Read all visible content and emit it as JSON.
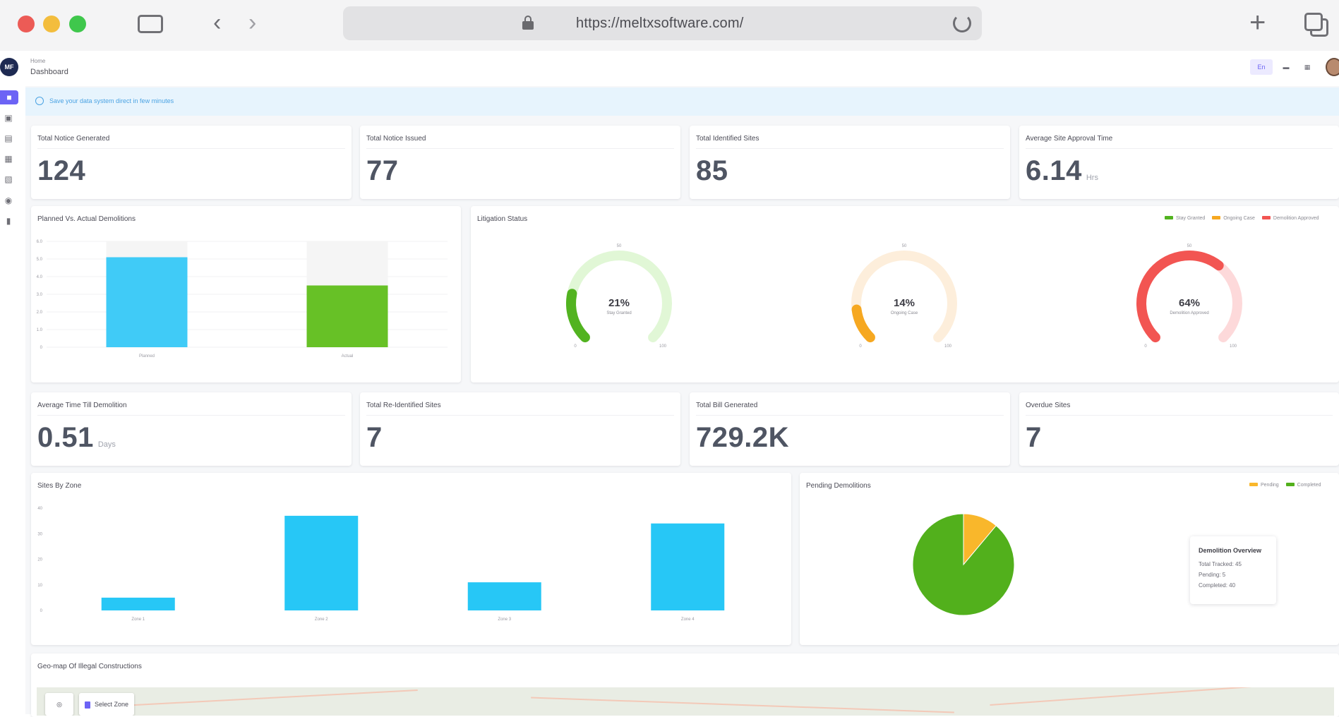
{
  "browser": {
    "url": "https://meltxsoftware.com/"
  },
  "topbar": {
    "breadcrumb_home": "Home",
    "page_title": "Dashboard",
    "lang_chip": "En"
  },
  "alert": {
    "text": "Save your data system direct in few minutes"
  },
  "kpis_row1": [
    {
      "title": "Total Notice Generated",
      "value": "124",
      "unit": ""
    },
    {
      "title": "Total Notice Issued",
      "value": "77",
      "unit": ""
    },
    {
      "title": "Total Identified Sites",
      "value": "85",
      "unit": ""
    },
    {
      "title": "Average Site Approval Time",
      "value": "6.14",
      "unit": "Hrs"
    }
  ],
  "kpis_row2": [
    {
      "title": "Average Time Till Demolition",
      "value": "0.51",
      "unit": "Days"
    },
    {
      "title": "Total Re-Identified Sites",
      "value": "7",
      "unit": ""
    },
    {
      "title": "Total Bill Generated",
      "value": "729.2K",
      "unit": ""
    },
    {
      "title": "Overdue Sites",
      "value": "7",
      "unit": ""
    }
  ],
  "planned_chart": {
    "title": "Planned Vs. Actual Demolitions",
    "y_ticks": [
      "6.0",
      "5.0",
      "4.0",
      "3.0",
      "2.0",
      "1.0",
      "0"
    ]
  },
  "litigation": {
    "title": "Litigation Status",
    "gauge_min": "0",
    "gauge_mid": "50",
    "gauge_max": "100",
    "colors": {
      "green": "#52b320",
      "orange": "#f6a821",
      "red": "#f25552"
    }
  },
  "sites_zone": {
    "title": "Sites By Zone",
    "y_ticks": [
      "40",
      "30",
      "20",
      "10",
      "0"
    ]
  },
  "pending": {
    "title": "Pending Demolitions",
    "legend": [
      "Pending",
      "Completed"
    ],
    "tooltip_title": "Demolition Overview",
    "tooltip_lines": [
      "Total Tracked: 45",
      "Pending: 5",
      "Completed: 40"
    ]
  },
  "geo": {
    "title": "Geo-map Of Illegal Constructions",
    "select_zone": "Select Zone"
  },
  "chart_data": [
    {
      "type": "bar",
      "title": "Planned Vs. Actual Demolitions",
      "categories": [
        "Planned",
        "Actual"
      ],
      "values": [
        5.1,
        3.5
      ],
      "ylim": [
        0,
        6
      ],
      "colors": [
        "#40cbf7",
        "#67c126"
      ]
    },
    {
      "type": "pie",
      "title": "Litigation Status",
      "legend": [
        "Stay Granted",
        "Ongoing Case",
        "Demolition Approved"
      ],
      "values": [
        21,
        14,
        64
      ],
      "labels": [
        "21%",
        "14%",
        "64%"
      ],
      "sub_labels": [
        "Stay Granted",
        "Ongoing Case",
        "Demolition Approved"
      ]
    },
    {
      "type": "bar",
      "title": "Sites By Zone",
      "categories": [
        "Zone 1",
        "Zone 2",
        "Zone 3",
        "Zone 4"
      ],
      "values": [
        5,
        37,
        11,
        34
      ],
      "ylim": [
        0,
        40
      ],
      "color": "#27c7f6"
    },
    {
      "type": "pie",
      "title": "Pending Demolitions",
      "categories": [
        "Pending",
        "Completed"
      ],
      "values": [
        5,
        40
      ],
      "colors": [
        "#f9b72b",
        "#52b01c"
      ]
    }
  ]
}
